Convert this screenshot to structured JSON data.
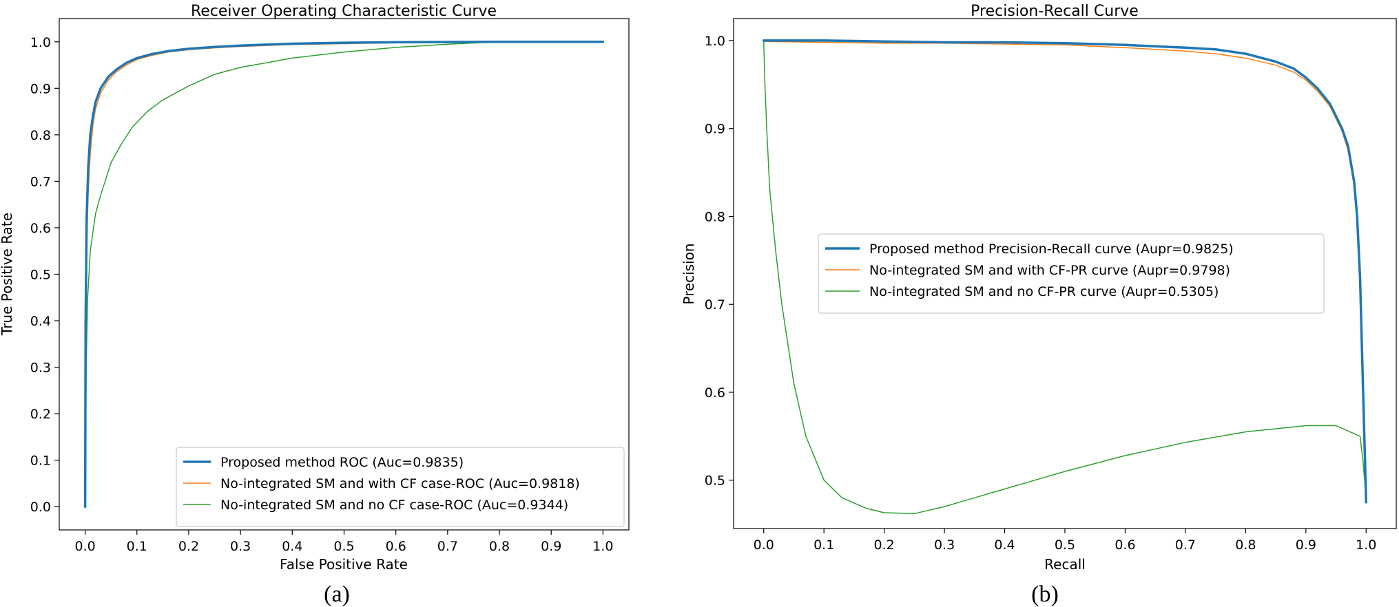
{
  "chart_data": [
    {
      "id": "a",
      "type": "line",
      "title": "Receiver Operating Characteristic Curve",
      "xlabel": "False Positive Rate",
      "ylabel": "True Positive Rate",
      "caption": "(a)",
      "xlim": [
        -0.05,
        1.05
      ],
      "ylim": [
        -0.05,
        1.05
      ],
      "xticks": [
        0.0,
        0.1,
        0.2,
        0.3,
        0.4,
        0.5,
        0.6,
        0.7,
        0.8,
        0.9,
        1.0
      ],
      "yticks": [
        0.0,
        0.1,
        0.2,
        0.3,
        0.4,
        0.5,
        0.6,
        0.7,
        0.8,
        0.9,
        1.0
      ],
      "legend_position": "lower-right",
      "series": [
        {
          "name": "Proposed method ROC (Auc=0.9835)",
          "color": "#1f77b4",
          "width": "thick",
          "x": [
            0.0,
            0.001,
            0.003,
            0.006,
            0.01,
            0.015,
            0.02,
            0.03,
            0.045,
            0.06,
            0.08,
            0.1,
            0.13,
            0.16,
            0.2,
            0.25,
            0.3,
            0.4,
            0.5,
            0.6,
            0.8,
            1.0
          ],
          "y": [
            0.0,
            0.4,
            0.62,
            0.73,
            0.8,
            0.84,
            0.87,
            0.9,
            0.925,
            0.94,
            0.955,
            0.965,
            0.974,
            0.98,
            0.985,
            0.989,
            0.992,
            0.996,
            0.998,
            0.999,
            1.0,
            1.0
          ]
        },
        {
          "name": "No-integrated SM and with CF case-ROC (Auc=0.9818)",
          "color": "#ff7f0e",
          "width": "thin",
          "x": [
            0.0,
            0.001,
            0.003,
            0.006,
            0.01,
            0.015,
            0.02,
            0.03,
            0.045,
            0.06,
            0.08,
            0.1,
            0.13,
            0.16,
            0.2,
            0.25,
            0.3,
            0.4,
            0.5,
            0.6,
            0.8,
            1.0
          ],
          "y": [
            0.0,
            0.32,
            0.55,
            0.68,
            0.76,
            0.82,
            0.855,
            0.89,
            0.918,
            0.935,
            0.95,
            0.962,
            0.971,
            0.978,
            0.983,
            0.987,
            0.99,
            0.994,
            0.996,
            0.998,
            1.0,
            1.0
          ]
        },
        {
          "name": "No-integrated SM and no CF case-ROC (Auc=0.9344)",
          "color": "#2ca02c",
          "width": "thin",
          "x": [
            0.0,
            0.002,
            0.005,
            0.01,
            0.02,
            0.03,
            0.05,
            0.07,
            0.09,
            0.12,
            0.15,
            0.2,
            0.25,
            0.3,
            0.35,
            0.4,
            0.5,
            0.6,
            0.7,
            0.8,
            0.9,
            1.0
          ],
          "y": [
            0.0,
            0.3,
            0.45,
            0.55,
            0.63,
            0.67,
            0.74,
            0.78,
            0.815,
            0.85,
            0.875,
            0.905,
            0.93,
            0.945,
            0.955,
            0.965,
            0.978,
            0.988,
            0.995,
            1.0,
            1.0,
            1.0
          ]
        }
      ]
    },
    {
      "id": "b",
      "type": "line",
      "title": "Precision-Recall Curve",
      "xlabel": "Recall",
      "ylabel": "Precision",
      "caption": "(b)",
      "xlim": [
        -0.05,
        1.05
      ],
      "ylim": [
        0.445,
        1.025
      ],
      "xticks": [
        0.0,
        0.1,
        0.2,
        0.3,
        0.4,
        0.5,
        0.6,
        0.7,
        0.8,
        0.9,
        1.0
      ],
      "yticks": [
        0.5,
        0.6,
        0.7,
        0.8,
        0.9,
        1.0
      ],
      "legend_position": "center-right",
      "series": [
        {
          "name": "Proposed method Precision-Recall curve (Aupr=0.9825)",
          "color": "#1f77b4",
          "width": "thick",
          "x": [
            0.0,
            0.1,
            0.2,
            0.3,
            0.4,
            0.5,
            0.6,
            0.7,
            0.75,
            0.8,
            0.85,
            0.88,
            0.9,
            0.92,
            0.94,
            0.96,
            0.97,
            0.98,
            0.985,
            0.99,
            0.995,
            1.0
          ],
          "y": [
            1.0,
            1.0,
            0.999,
            0.998,
            0.998,
            0.997,
            0.995,
            0.992,
            0.99,
            0.985,
            0.976,
            0.968,
            0.958,
            0.945,
            0.928,
            0.9,
            0.88,
            0.84,
            0.8,
            0.73,
            0.6,
            0.475
          ]
        },
        {
          "name": "No-integrated SM and with CF-PR curve (Aupr=0.9798)",
          "color": "#ff7f0e",
          "width": "thin",
          "x": [
            0.0,
            0.1,
            0.2,
            0.3,
            0.4,
            0.5,
            0.6,
            0.7,
            0.75,
            0.8,
            0.85,
            0.88,
            0.9,
            0.92,
            0.94,
            0.96,
            0.97,
            0.98,
            0.985,
            0.99,
            0.995,
            1.0
          ],
          "y": [
            0.999,
            0.998,
            0.997,
            0.997,
            0.996,
            0.995,
            0.992,
            0.988,
            0.985,
            0.98,
            0.972,
            0.964,
            0.955,
            0.942,
            0.925,
            0.897,
            0.875,
            0.835,
            0.795,
            0.72,
            0.59,
            0.48
          ]
        },
        {
          "name": "No-integrated SM and no CF-PR curve (Aupr=0.5305)",
          "color": "#2ca02c",
          "width": "thin",
          "x": [
            0.0,
            0.002,
            0.005,
            0.01,
            0.02,
            0.03,
            0.05,
            0.07,
            0.1,
            0.13,
            0.17,
            0.2,
            0.25,
            0.3,
            0.4,
            0.5,
            0.6,
            0.7,
            0.8,
            0.9,
            0.95,
            0.99,
            0.995,
            1.0
          ],
          "y": [
            1.0,
            0.95,
            0.9,
            0.83,
            0.76,
            0.7,
            0.61,
            0.55,
            0.5,
            0.48,
            0.468,
            0.463,
            0.462,
            0.47,
            0.49,
            0.51,
            0.528,
            0.543,
            0.555,
            0.562,
            0.562,
            0.55,
            0.52,
            0.48
          ]
        }
      ]
    }
  ]
}
